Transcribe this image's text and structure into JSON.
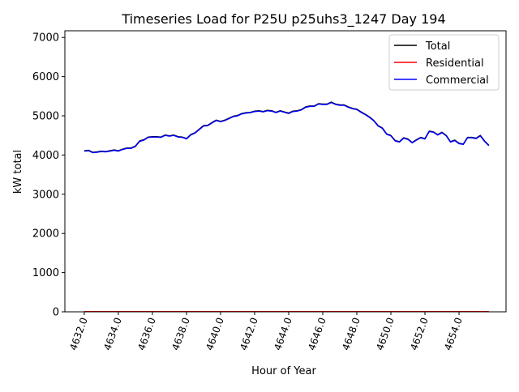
{
  "chart_data": {
    "type": "line",
    "title": "Timeseries Load for P25U p25uhs3_1247  Day 194",
    "xlabel": "Hour of Year",
    "ylabel": "kW total",
    "xlim": [
      4630.86,
      4656.76
    ],
    "ylim": [
      0,
      7170
    ],
    "grid": false,
    "legend_placement": "top-right",
    "x_ticks": [
      "4632.0",
      "4634.0",
      "4636.0",
      "4638.0",
      "4640.0",
      "4642.0",
      "4644.0",
      "4646.0",
      "4648.0",
      "4650.0",
      "4652.0",
      "4654.0"
    ],
    "y_ticks": [
      "0",
      "1000",
      "2000",
      "3000",
      "4000",
      "5000",
      "6000",
      "7000"
    ],
    "x_start": 4632.0,
    "x_step": 0.25,
    "series": [
      {
        "name": "Total",
        "color": "#000000",
        "values": [
          4110,
          4120,
          4070,
          4080,
          4100,
          4090,
          4110,
          4130,
          4110,
          4150,
          4180,
          4180,
          4230,
          4360,
          4390,
          4460,
          4470,
          4470,
          4460,
          4510,
          4490,
          4510,
          4470,
          4460,
          4420,
          4520,
          4570,
          4660,
          4750,
          4760,
          4830,
          4890,
          4860,
          4890,
          4940,
          4990,
          5010,
          5060,
          5080,
          5090,
          5120,
          5130,
          5110,
          5140,
          5130,
          5090,
          5130,
          5100,
          5070,
          5120,
          5130,
          5160,
          5230,
          5250,
          5250,
          5310,
          5300,
          5300,
          5350,
          5300,
          5280,
          5280,
          5230,
          5190,
          5170,
          5100,
          5040,
          4970,
          4880,
          4750,
          4690,
          4540,
          4500,
          4370,
          4340,
          4440,
          4410,
          4320,
          4390,
          4450,
          4420,
          4610,
          4590,
          4520,
          4580,
          4500,
          4340,
          4380,
          4300,
          4280,
          4450,
          4450,
          4430,
          4500,
          4360,
          4250
        ]
      },
      {
        "name": "Residential",
        "color": "#ff0000",
        "values": [
          5,
          5,
          5,
          5,
          5,
          5,
          5,
          5,
          5,
          5,
          5,
          5,
          5,
          5,
          5,
          5,
          5,
          5,
          5,
          5,
          5,
          5,
          5,
          5,
          5,
          5,
          5,
          5,
          5,
          5,
          5,
          5,
          5,
          5,
          5,
          5,
          5,
          5,
          5,
          5,
          5,
          5,
          5,
          5,
          5,
          5,
          5,
          5,
          5,
          5,
          5,
          5,
          5,
          5,
          5,
          5,
          5,
          5,
          5,
          5,
          5,
          5,
          5,
          5,
          5,
          5,
          5,
          5,
          5,
          5,
          5,
          5,
          5,
          5,
          5,
          5,
          5,
          5,
          5,
          5,
          5,
          5,
          5,
          5,
          5,
          5,
          5,
          5,
          5,
          5,
          5,
          5,
          5,
          5,
          5,
          5
        ]
      },
      {
        "name": "Commercial",
        "color": "#0000ff",
        "values": [
          4100,
          4110,
          4060,
          4070,
          4090,
          4080,
          4100,
          4120,
          4100,
          4140,
          4170,
          4170,
          4220,
          4350,
          4380,
          4450,
          4460,
          4460,
          4450,
          4500,
          4480,
          4500,
          4460,
          4450,
          4410,
          4510,
          4560,
          4650,
          4740,
          4750,
          4820,
          4880,
          4850,
          4880,
          4930,
          4980,
          5000,
          5050,
          5070,
          5080,
          5110,
          5120,
          5100,
          5130,
          5120,
          5080,
          5120,
          5090,
          5060,
          5110,
          5120,
          5150,
          5220,
          5240,
          5240,
          5300,
          5290,
          5290,
          5340,
          5290,
          5270,
          5270,
          5220,
          5180,
          5160,
          5090,
          5030,
          4960,
          4870,
          4740,
          4680,
          4530,
          4490,
          4360,
          4330,
          4430,
          4400,
          4310,
          4380,
          4440,
          4410,
          4600,
          4580,
          4510,
          4570,
          4490,
          4330,
          4370,
          4290,
          4270,
          4440,
          4440,
          4420,
          4490,
          4350,
          4240
        ]
      }
    ]
  }
}
